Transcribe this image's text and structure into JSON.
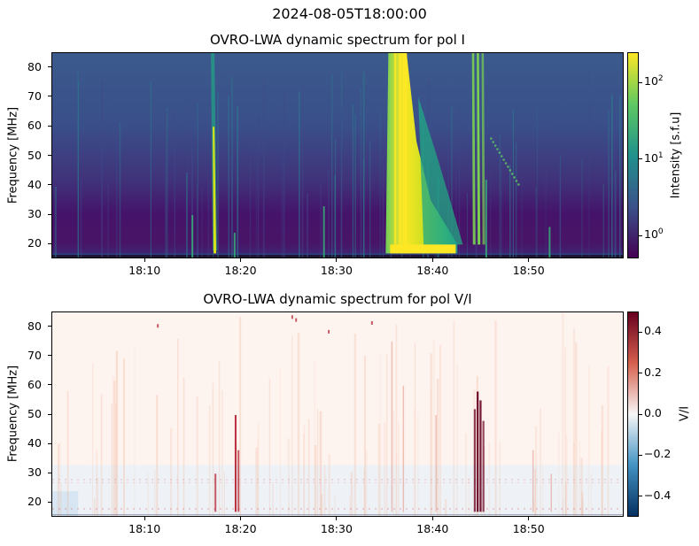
{
  "suptitle": "2024-08-05T18:00:00",
  "chart_data": [
    {
      "type": "heatmap",
      "title": "OVRO-LWA dynamic spectrum for pol I",
      "ylabel": "Frequency [MHz]",
      "xticks": [
        "18:10",
        "18:20",
        "18:30",
        "18:40",
        "18:50"
      ],
      "xtick_minutes": [
        10,
        20,
        30,
        40,
        50
      ],
      "xlim_minutes": [
        0.3,
        59.9
      ],
      "yticks": [
        "20",
        "30",
        "40",
        "50",
        "60",
        "70",
        "80"
      ],
      "ytick_values": [
        20,
        30,
        40,
        50,
        60,
        70,
        80
      ],
      "ylim": [
        15,
        85
      ],
      "colorbar": {
        "label": "Intensity [s.f.u]",
        "scale": "log",
        "range": [
          0.5,
          250
        ],
        "ticks": [
          {
            "base": "10",
            "exp": "0",
            "value": 1
          },
          {
            "base": "10",
            "exp": "1",
            "value": 10
          },
          {
            "base": "10",
            "exp": "2",
            "value": 100
          }
        ],
        "colormap": "viridis",
        "colors": [
          "#440154",
          "#3b528b",
          "#21918c",
          "#5ec962",
          "#fde725"
        ]
      },
      "bursts_minutes": [
        {
          "t": 17.1,
          "strength": 1.0
        },
        {
          "t": 35.5,
          "strength": 1.0
        },
        {
          "t": 37.0,
          "strength": 0.9
        },
        {
          "t": 41.0,
          "strength": 0.55
        },
        {
          "t": 44.5,
          "strength": 0.8
        }
      ]
    },
    {
      "type": "heatmap",
      "title": "OVRO-LWA dynamic spectrum for pol V/I",
      "ylabel": "Frequency [MHz]",
      "xticks": [
        "18:10",
        "18:20",
        "18:30",
        "18:40",
        "18:50"
      ],
      "xtick_minutes": [
        10,
        20,
        30,
        40,
        50
      ],
      "xlim_minutes": [
        0.3,
        59.9
      ],
      "yticks": [
        "20",
        "30",
        "40",
        "50",
        "60",
        "70",
        "80"
      ],
      "ytick_values": [
        20,
        30,
        40,
        50,
        60,
        70,
        80
      ],
      "ylim": [
        15,
        85
      ],
      "colorbar": {
        "label": "V/I",
        "scale": "linear",
        "range": [
          -0.5,
          0.5
        ],
        "ticks": [
          {
            "text": "0.4",
            "value": 0.4
          },
          {
            "text": "0.2",
            "value": 0.2
          },
          {
            "text": "0.0",
            "value": 0.0
          },
          {
            "text": "−0.2",
            "value": -0.2
          },
          {
            "text": "−0.4",
            "value": -0.4
          }
        ],
        "colormap": "RdBu_r",
        "colors": [
          "#053061",
          "#4393c3",
          "#f7f7f7",
          "#d6604d",
          "#67001f"
        ]
      }
    }
  ]
}
